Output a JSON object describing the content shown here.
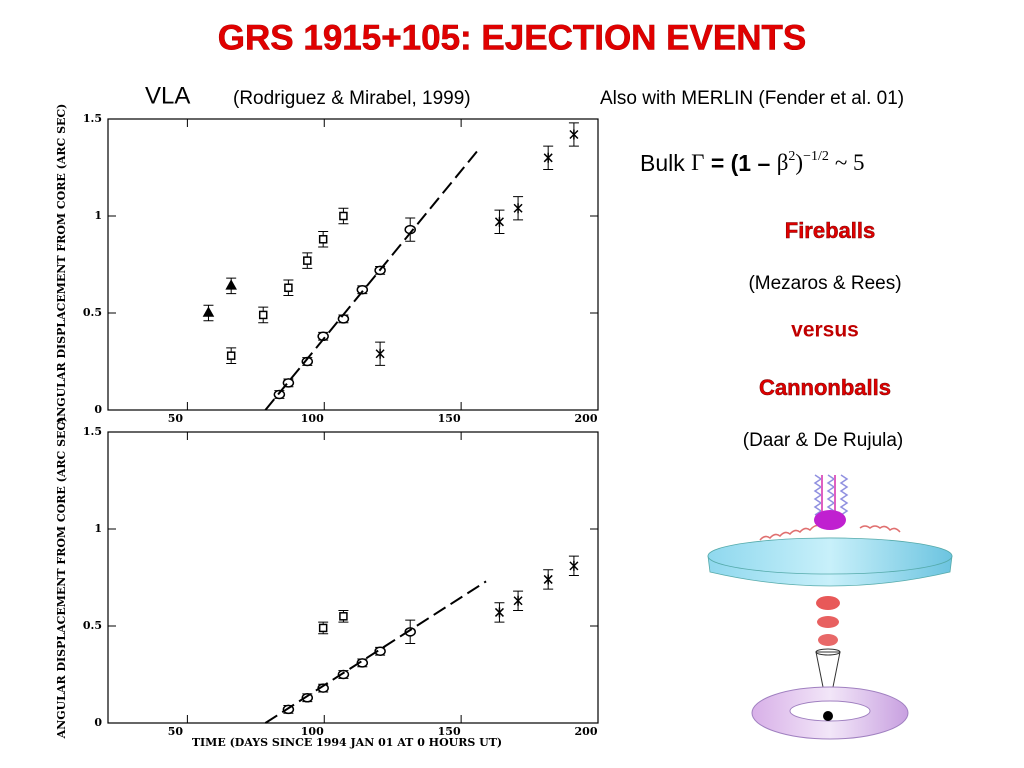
{
  "slide": {
    "title": "GRS 1915+105: EJECTION EVENTS",
    "vla": "VLA",
    "vla_ref": "(Rodriguez & Mirabel, 1999)",
    "merlin": "Also with MERLIN (Fender et al. 01)",
    "formula": {
      "bulk": "Bulk",
      "gamma": "Γ",
      "eq": "= (1 –",
      "beta": "β",
      "sq": "2",
      "close": ")",
      "exp": "−1/2",
      "approx": "~ 5"
    },
    "fireballs": "Fireballs",
    "fireballs_ref": "(Mezaros & Rees)",
    "versus": "versus",
    "cannonballs": "Cannonballs",
    "cannonballs_ref": "(Daar & De Rujula)"
  },
  "chart_data": [
    {
      "type": "scatter",
      "ylabel": "ANGULAR DISPLACEMENT FROM CORE (ARC SEC)",
      "xlim": [
        21,
        200
      ],
      "ylim": [
        0,
        1.5
      ],
      "xticks": [
        50,
        100,
        150,
        200
      ],
      "yticks": [
        0,
        0.5,
        1,
        1.5
      ],
      "series": [
        {
          "marker": "triangle",
          "x": [
            57.7,
            66
          ],
          "values": [
            0.5,
            0.64
          ],
          "errors": [
            0.04,
            0.04
          ]
        },
        {
          "marker": "square",
          "x": [
            66,
            77.7,
            86.9,
            93.8,
            99.6,
            107
          ],
          "values": [
            0.28,
            0.49,
            0.63,
            0.77,
            0.88,
            1.0
          ],
          "errors": [
            0.04,
            0.04,
            0.04,
            0.04,
            0.04,
            0.04
          ]
        },
        {
          "marker": "circle",
          "x": [
            83.6,
            86.9,
            93.8,
            99.6,
            107,
            113.9,
            120.4,
            131.4
          ],
          "values": [
            0.08,
            0.14,
            0.25,
            0.38,
            0.47,
            0.62,
            0.72,
            0.93
          ],
          "errors": [
            0.02,
            0.02,
            0.02,
            0.02,
            0.02,
            0.02,
            0.02,
            0.06
          ]
        },
        {
          "marker": "star",
          "x": [
            120.4,
            164,
            170.8,
            181.8,
            191.2
          ],
          "values": [
            0.29,
            0.97,
            1.04,
            1.3,
            1.42
          ],
          "errors": [
            0.06,
            0.06,
            0.06,
            0.06,
            0.06
          ]
        },
        {
          "marker": "dashed",
          "x": [
            78.5,
            156.2
          ],
          "values": [
            0,
            1.34
          ]
        }
      ]
    },
    {
      "type": "scatter",
      "ylabel": "ANGULAR DISPLACEMENT FROM CORE (ARC SEC)",
      "xlabel": "TIME (DAYS SINCE 1994 JAN 01 AT 0 HOURS UT)",
      "xlim": [
        21,
        200
      ],
      "ylim": [
        0,
        1.5
      ],
      "xticks": [
        50,
        100,
        150,
        200
      ],
      "yticks": [
        0,
        0.5,
        1,
        1.5
      ],
      "series": [
        {
          "marker": "square",
          "x": [
            99.6,
            107
          ],
          "values": [
            0.49,
            0.55
          ],
          "errors": [
            0.03,
            0.03
          ]
        },
        {
          "marker": "circle",
          "x": [
            86.9,
            93.8,
            99.6,
            107,
            113.9,
            120.4,
            131.4
          ],
          "values": [
            0.07,
            0.13,
            0.18,
            0.25,
            0.31,
            0.37,
            0.47
          ],
          "errors": [
            0.02,
            0.02,
            0.02,
            0.02,
            0.02,
            0.02,
            0.06
          ]
        },
        {
          "marker": "star",
          "x": [
            164,
            170.8,
            181.8,
            191.2
          ],
          "values": [
            0.57,
            0.63,
            0.74,
            0.81
          ],
          "errors": [
            0.05,
            0.05,
            0.05,
            0.05
          ]
        },
        {
          "marker": "dashed",
          "x": [
            78.5,
            159.1
          ],
          "values": [
            0,
            0.73
          ]
        }
      ]
    }
  ]
}
